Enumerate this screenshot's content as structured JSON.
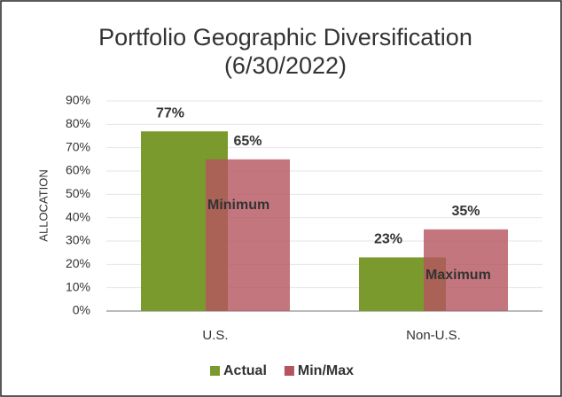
{
  "chart_data": {
    "type": "bar",
    "title": [
      "Portfolio Geographic Diversification",
      "(6/30/2022)"
    ],
    "y_label": "ALLOCATION",
    "categories": [
      "U.S.",
      "Non-U.S."
    ],
    "series": [
      {
        "name": "Actual",
        "color": "#7a9a2e",
        "values": [
          77,
          23
        ],
        "value_labels": [
          "77%",
          "23%"
        ]
      },
      {
        "name": "Min/Max",
        "color": "#b5545f",
        "values": [
          65,
          35
        ],
        "value_labels": [
          "65%",
          "35%"
        ]
      }
    ],
    "annotations": [
      "Minimum",
      "Maximum"
    ],
    "ylim": [
      0,
      90
    ],
    "yticks": [
      {
        "value": 0,
        "label": "0%"
      },
      {
        "value": 10,
        "label": "10%"
      },
      {
        "value": 20,
        "label": "20%"
      },
      {
        "value": 30,
        "label": "30%"
      },
      {
        "value": 40,
        "label": "40%"
      },
      {
        "value": 50,
        "label": "50%"
      },
      {
        "value": 60,
        "label": "60%"
      },
      {
        "value": 70,
        "label": "70%"
      },
      {
        "value": 80,
        "label": "80%"
      },
      {
        "value": 90,
        "label": "90%"
      }
    ],
    "grid": true
  }
}
